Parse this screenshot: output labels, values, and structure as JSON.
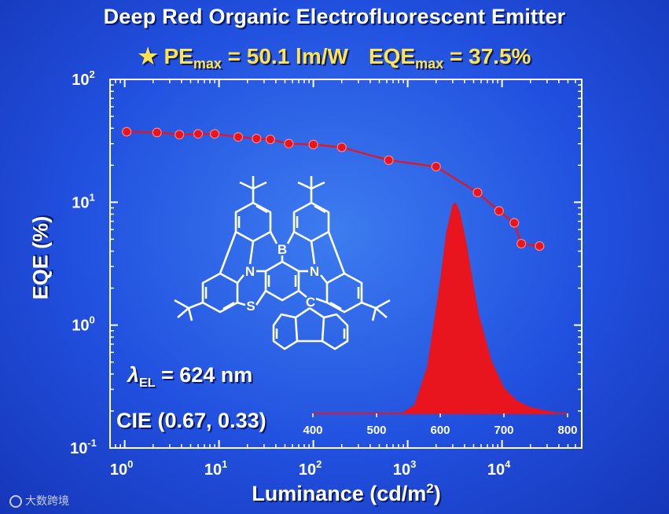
{
  "title": "Deep Red Organic Electrofluorescent Emitter",
  "metrics": {
    "star": "★",
    "pe_label": "PE",
    "pe_sub": "max",
    "pe_value": " = 50.1 lm/W",
    "eqe_label": "EQE",
    "eqe_sub": "max",
    "eqe_value": " = 37.5%"
  },
  "annotations": {
    "lambda_symbol": "λ",
    "lambda_sub": "EL",
    "lambda_value": " = 624 nm",
    "cie": "CIE (0.67, 0.33)"
  },
  "molecule_atoms": [
    "B",
    "N",
    "N",
    "S",
    "C"
  ],
  "watermark": "大数跨境",
  "colors": {
    "background": "#2150df",
    "data": "#e8141e",
    "metric_text": "#ffe34a",
    "text": "#ffffff",
    "structure": "#ffffff"
  },
  "chart_data": [
    {
      "type": "line",
      "xlabel": "Luminance (cd/m",
      "xlabel_sup": "2",
      "xlabel_end": ")",
      "ylabel": "EQE (%)",
      "xscale": "log",
      "yscale": "log",
      "xlim": [
        0.7,
        70000
      ],
      "ylim": [
        0.1,
        100
      ],
      "x_ticks": [
        {
          "base": "10",
          "exp": "0"
        },
        {
          "base": "10",
          "exp": "1"
        },
        {
          "base": "10",
          "exp": "2"
        },
        {
          "base": "10",
          "exp": "3"
        },
        {
          "base": "10",
          "exp": "4"
        }
      ],
      "x_tick_values": [
        1,
        10,
        100,
        1000,
        10000
      ],
      "y_ticks": [
        {
          "base": "10",
          "exp": "-1"
        },
        {
          "base": "10",
          "exp": "0"
        },
        {
          "base": "10",
          "exp": "1"
        },
        {
          "base": "10",
          "exp": "2"
        }
      ],
      "y_tick_values": [
        0.1,
        1,
        10,
        100
      ],
      "grid": false,
      "series": [
        {
          "x": [
            1.05,
            2.2,
            3.8,
            6.0,
            9.0,
            16,
            25,
            35,
            55,
            100,
            200,
            630,
            2000,
            5500,
            9300,
            13500,
            16000,
            25000
          ],
          "y": [
            37.5,
            37,
            35.5,
            36,
            36,
            34,
            33,
            32.5,
            30,
            29.5,
            28,
            22,
            19.5,
            12,
            8.5,
            6.8,
            4.6,
            4.4
          ]
        }
      ]
    },
    {
      "type": "area",
      "xlabel": "",
      "ylabel": "",
      "xlim": [
        400,
        800
      ],
      "x_ticks": [
        400,
        500,
        600,
        700,
        800
      ],
      "peak": 624,
      "series": [
        {
          "x": [
            540,
            560,
            580,
            600,
            610,
            620,
            624,
            630,
            640,
            650,
            660,
            680,
            700,
            720,
            740,
            760,
            780
          ],
          "y": [
            0.0,
            0.04,
            0.22,
            0.62,
            0.86,
            0.99,
            1.0,
            0.96,
            0.82,
            0.64,
            0.47,
            0.25,
            0.12,
            0.06,
            0.03,
            0.015,
            0.005
          ]
        }
      ]
    }
  ]
}
